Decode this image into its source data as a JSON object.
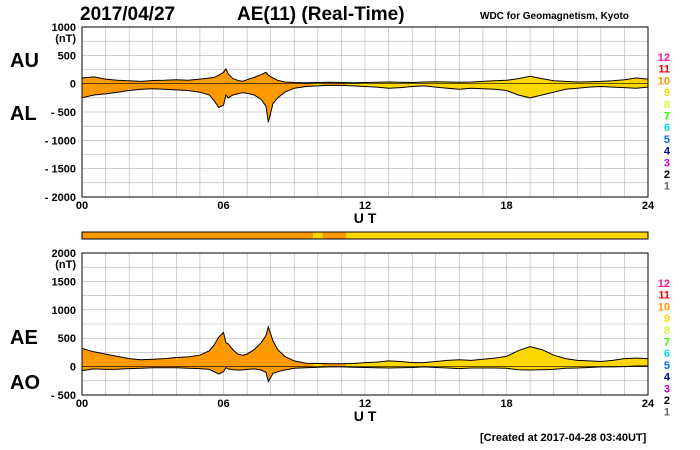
{
  "header": {
    "date": "2017/04/27",
    "title": "AE(11) (Real-Time)",
    "source": "WDC for Geomagnetism, Kyoto"
  },
  "footer": {
    "created": "[Created at 2017-04-28 03:40UT]"
  },
  "colors": {
    "orange": "#ff9a1f",
    "yellow": "#ffff1f",
    "grid": "#b0b0b0",
    "legend": [
      "#ff1493",
      "#ff0000",
      "#ff9900",
      "#ffd700",
      "#ccff33",
      "#33ff00",
      "#00dddd",
      "#0066ff",
      "#0000aa",
      "#cc00cc",
      "#000000",
      "#666666",
      "#bbbbbb"
    ]
  },
  "legend_levels": [
    "12",
    "11",
    "10",
    "9",
    "8",
    "7",
    "6",
    "5",
    "4",
    "3",
    "2",
    "1"
  ],
  "chart_data": [
    {
      "type": "area",
      "id": "au-al",
      "left_label_top": "AU",
      "left_label_bottom": "AL",
      "unit": "(nT)",
      "xlabel": "U T",
      "xlim": [
        0,
        24
      ],
      "ylim": [
        -2000,
        1000
      ],
      "x_ticks": [
        "00",
        "06",
        "12",
        "18",
        "24"
      ],
      "y_ticks": [
        "1000",
        "500",
        "0",
        "- 500",
        "- 1000",
        "- 1500",
        "- 2000"
      ],
      "x": [
        0,
        0.5,
        1,
        1.5,
        2,
        2.5,
        3,
        3.5,
        4,
        4.5,
        5,
        5.4,
        5.6,
        5.8,
        6.0,
        6.1,
        6.2,
        6.4,
        6.6,
        6.8,
        7.0,
        7.3,
        7.6,
        7.8,
        7.9,
        8.1,
        8.3,
        8.6,
        9.0,
        9.5,
        10,
        10.5,
        11,
        11.5,
        12,
        12.5,
        13,
        13.5,
        14,
        14.5,
        15,
        15.5,
        16,
        16.5,
        17,
        17.5,
        18,
        18.5,
        19,
        19.5,
        20,
        20.5,
        21,
        21.5,
        22,
        22.5,
        23,
        23.5,
        24
      ],
      "series": [
        {
          "name": "AU",
          "values": [
            100,
            120,
            80,
            60,
            50,
            40,
            55,
            60,
            70,
            60,
            80,
            100,
            110,
            150,
            200,
            260,
            170,
            90,
            60,
            40,
            70,
            110,
            160,
            200,
            150,
            100,
            60,
            30,
            20,
            15,
            20,
            25,
            20,
            15,
            20,
            25,
            30,
            25,
            20,
            30,
            35,
            30,
            25,
            30,
            40,
            50,
            60,
            90,
            130,
            90,
            50,
            40,
            30,
            35,
            40,
            50,
            70,
            100,
            80
          ]
        },
        {
          "name": "AL",
          "values": [
            -250,
            -200,
            -180,
            -150,
            -120,
            -100,
            -90,
            -100,
            -110,
            -120,
            -150,
            -200,
            -300,
            -420,
            -380,
            -200,
            -250,
            -200,
            -180,
            -160,
            -170,
            -200,
            -280,
            -400,
            -680,
            -350,
            -250,
            -150,
            -80,
            -50,
            -40,
            -30,
            -30,
            -40,
            -50,
            -60,
            -80,
            -70,
            -50,
            -40,
            -60,
            -80,
            -100,
            -80,
            -90,
            -100,
            -120,
            -200,
            -250,
            -200,
            -150,
            -100,
            -80,
            -60,
            -50,
            -60,
            -70,
            -80,
            -60
          ]
        }
      ],
      "level_bar": [
        {
          "from": 0,
          "to": 9.8,
          "level": "10"
        },
        {
          "from": 9.8,
          "to": 10.2,
          "level": "9"
        },
        {
          "from": 10.2,
          "to": 11.2,
          "level": "10"
        },
        {
          "from": 11.2,
          "to": 24,
          "level": "9"
        }
      ]
    },
    {
      "type": "area",
      "id": "ae-ao",
      "left_label_top": "AE",
      "left_label_bottom": "AO",
      "unit": "(nT)",
      "xlabel": "U T",
      "xlim": [
        0,
        24
      ],
      "ylim": [
        -500,
        2000
      ],
      "x_ticks": [
        "00",
        "06",
        "12",
        "18",
        "24"
      ],
      "y_ticks": [
        "2000",
        "1500",
        "1000",
        "500",
        "0",
        "- 500"
      ],
      "x": [
        0,
        0.5,
        1,
        1.5,
        2,
        2.5,
        3,
        3.5,
        4,
        4.5,
        5,
        5.4,
        5.6,
        5.8,
        6.0,
        6.1,
        6.2,
        6.4,
        6.6,
        6.8,
        7.0,
        7.3,
        7.6,
        7.8,
        7.9,
        8.1,
        8.3,
        8.6,
        9.0,
        9.5,
        10,
        10.5,
        11,
        11.5,
        12,
        12.5,
        13,
        13.5,
        14,
        14.5,
        15,
        15.5,
        16,
        16.5,
        17,
        17.5,
        18,
        18.5,
        19,
        19.5,
        20,
        20.5,
        21,
        21.5,
        22,
        22.5,
        23,
        23.5,
        24
      ],
      "series": [
        {
          "name": "AE",
          "values": [
            320,
            260,
            220,
            180,
            140,
            120,
            130,
            140,
            160,
            170,
            200,
            280,
            380,
            520,
            600,
            420,
            400,
            300,
            220,
            200,
            220,
            300,
            420,
            550,
            700,
            450,
            300,
            180,
            100,
            60,
            55,
            50,
            50,
            55,
            70,
            80,
            100,
            90,
            70,
            70,
            90,
            110,
            120,
            110,
            130,
            150,
            180,
            280,
            350,
            300,
            200,
            140,
            110,
            100,
            90,
            110,
            140,
            150,
            140
          ]
        },
        {
          "name": "AO",
          "values": [
            -70,
            -40,
            -50,
            -45,
            -35,
            -30,
            -20,
            -20,
            -20,
            -30,
            -35,
            -50,
            -90,
            -130,
            -90,
            -20,
            -40,
            -55,
            -60,
            -60,
            -50,
            -40,
            -60,
            -100,
            -260,
            -120,
            -90,
            -60,
            -30,
            -20,
            -10,
            -5,
            -5,
            -10,
            -15,
            -20,
            -25,
            -20,
            -15,
            -5,
            -15,
            -25,
            -35,
            -25,
            -25,
            -25,
            -30,
            -55,
            -60,
            -55,
            -50,
            -30,
            -25,
            -15,
            -5,
            -5,
            0,
            10,
            10
          ]
        }
      ],
      "level_bar": [
        {
          "from": 0,
          "to": 9.8,
          "level": "10"
        },
        {
          "from": 9.8,
          "to": 10.2,
          "level": "9"
        },
        {
          "from": 10.2,
          "to": 11.2,
          "level": "10"
        },
        {
          "from": 11.2,
          "to": 24,
          "level": "9"
        }
      ]
    }
  ]
}
